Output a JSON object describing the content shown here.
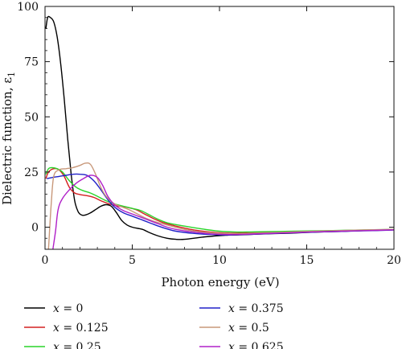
{
  "chart_data": {
    "type": "line",
    "title": "",
    "xlabel": "Photon energy (eV)",
    "ylabel": "Dielectric function, ε",
    "ylabel_sub": "1",
    "xlim": [
      0,
      20
    ],
    "ylim": [
      -10,
      100
    ],
    "xticks": [
      "0",
      "5",
      "10",
      "15",
      "20"
    ],
    "yticks": [
      "0",
      "25",
      "50",
      "75",
      "100"
    ],
    "grid": false,
    "legend_position": "bottom",
    "legend_prefix": "x",
    "series": [
      {
        "name": "= 0",
        "color": "#000000",
        "points": [
          [
            0.05,
            90
          ],
          [
            0.15,
            95
          ],
          [
            0.3,
            95
          ],
          [
            0.5,
            93
          ],
          [
            0.7,
            86
          ],
          [
            0.9,
            74
          ],
          [
            1.1,
            58
          ],
          [
            1.3,
            40
          ],
          [
            1.5,
            24
          ],
          [
            1.7,
            12
          ],
          [
            1.9,
            7
          ],
          [
            2.1,
            5.5
          ],
          [
            2.3,
            5.5
          ],
          [
            2.6,
            6.5
          ],
          [
            2.9,
            8
          ],
          [
            3.2,
            9.5
          ],
          [
            3.5,
            10.2
          ],
          [
            3.8,
            9.5
          ],
          [
            4.1,
            6.5
          ],
          [
            4.4,
            3
          ],
          [
            4.7,
            1
          ],
          [
            5.0,
            0
          ],
          [
            5.3,
            -0.5
          ],
          [
            5.6,
            -1
          ],
          [
            6.0,
            -2.5
          ],
          [
            6.5,
            -4
          ],
          [
            7.0,
            -5
          ],
          [
            7.5,
            -5.5
          ],
          [
            8.0,
            -5.5
          ],
          [
            9.0,
            -4.5
          ],
          [
            10.0,
            -3.8
          ],
          [
            10.5,
            -3.6
          ],
          [
            11.0,
            -3.5
          ],
          [
            12.0,
            -3.2
          ],
          [
            13.0,
            -2.9
          ],
          [
            14.0,
            -2.7
          ],
          [
            15.0,
            -2.4
          ],
          [
            16.0,
            -2.1
          ],
          [
            17.0,
            -1.9
          ],
          [
            18.0,
            -1.6
          ],
          [
            19.0,
            -1.4
          ],
          [
            20.0,
            -1.2
          ]
        ]
      },
      {
        "name": "= 0.125",
        "color": "#d42020",
        "points": [
          [
            0.05,
            22
          ],
          [
            0.2,
            25
          ],
          [
            0.5,
            26.5
          ],
          [
            0.8,
            26
          ],
          [
            1.1,
            23
          ],
          [
            1.4,
            18
          ],
          [
            1.7,
            15.5
          ],
          [
            2.0,
            14.8
          ],
          [
            2.4,
            14.3
          ],
          [
            2.8,
            13.5
          ],
          [
            3.2,
            12
          ],
          [
            3.7,
            10.5
          ],
          [
            4.2,
            9.5
          ],
          [
            4.7,
            9
          ],
          [
            5.2,
            8
          ],
          [
            5.7,
            6
          ],
          [
            6.2,
            4
          ],
          [
            6.8,
            2
          ],
          [
            7.5,
            0.5
          ],
          [
            8.5,
            -1.2
          ],
          [
            9.5,
            -2.2
          ],
          [
            10.5,
            -2.7
          ],
          [
            11.5,
            -2.6
          ],
          [
            12.5,
            -2.4
          ],
          [
            14.0,
            -2.1
          ],
          [
            15.5,
            -1.8
          ],
          [
            17.0,
            -1.5
          ],
          [
            18.5,
            -1.3
          ],
          [
            20.0,
            -1.0
          ]
        ]
      },
      {
        "name": "= 0.25",
        "color": "#2ad42a",
        "points": [
          [
            0.05,
            24
          ],
          [
            0.2,
            26.5
          ],
          [
            0.4,
            27
          ],
          [
            0.7,
            26.5
          ],
          [
            1.0,
            25
          ],
          [
            1.4,
            21
          ],
          [
            1.8,
            18
          ],
          [
            2.2,
            16.5
          ],
          [
            2.6,
            15.5
          ],
          [
            3.0,
            14
          ],
          [
            3.5,
            12
          ],
          [
            4.0,
            10.5
          ],
          [
            4.5,
            9.5
          ],
          [
            5.0,
            8.5
          ],
          [
            5.5,
            7.5
          ],
          [
            6.0,
            5.5
          ],
          [
            6.5,
            3.5
          ],
          [
            7.0,
            2
          ],
          [
            7.5,
            1.2
          ],
          [
            8.0,
            0.5
          ],
          [
            9.0,
            -0.8
          ],
          [
            10.0,
            -1.8
          ],
          [
            11.0,
            -2.2
          ],
          [
            12.0,
            -2.1
          ],
          [
            13.5,
            -1.9
          ],
          [
            15.0,
            -1.7
          ],
          [
            16.5,
            -1.5
          ],
          [
            18.0,
            -1.3
          ],
          [
            20.0,
            -1.0
          ]
        ]
      },
      {
        "name": "= 0.375",
        "color": "#2020c8",
        "points": [
          [
            0.1,
            22
          ],
          [
            0.4,
            22.5
          ],
          [
            0.8,
            23
          ],
          [
            1.2,
            23.5
          ],
          [
            1.6,
            24
          ],
          [
            2.0,
            24
          ],
          [
            2.4,
            23.5
          ],
          [
            2.8,
            21
          ],
          [
            3.2,
            17
          ],
          [
            3.6,
            12.5
          ],
          [
            4.0,
            9
          ],
          [
            4.5,
            6.5
          ],
          [
            5.0,
            5
          ],
          [
            5.5,
            3.5
          ],
          [
            6.0,
            2
          ],
          [
            6.5,
            0.5
          ],
          [
            7.0,
            -0.8
          ],
          [
            7.5,
            -1.8
          ],
          [
            8.5,
            -2.8
          ],
          [
            9.5,
            -3.3
          ],
          [
            10.5,
            -3.5
          ],
          [
            11.5,
            -3.3
          ],
          [
            12.5,
            -3.0
          ],
          [
            14.0,
            -2.6
          ],
          [
            15.5,
            -2.2
          ],
          [
            17.0,
            -1.9
          ],
          [
            18.5,
            -1.6
          ],
          [
            20.0,
            -1.3
          ]
        ]
      },
      {
        "name": "= 0.5",
        "color": "#c8987a",
        "points": [
          [
            0.2,
            -10
          ],
          [
            0.35,
            10
          ],
          [
            0.5,
            23
          ],
          [
            0.8,
            26
          ],
          [
            1.2,
            26.5
          ],
          [
            1.6,
            27
          ],
          [
            2.0,
            28
          ],
          [
            2.3,
            29
          ],
          [
            2.6,
            28.5
          ],
          [
            2.9,
            24
          ],
          [
            3.2,
            18
          ],
          [
            3.5,
            14
          ],
          [
            3.9,
            11
          ],
          [
            4.3,
            9.5
          ],
          [
            4.8,
            8
          ],
          [
            5.3,
            6
          ],
          [
            5.8,
            4
          ],
          [
            6.3,
            2.5
          ],
          [
            7.0,
            1
          ],
          [
            8.0,
            -1
          ],
          [
            9.0,
            -2.2
          ],
          [
            10.0,
            -2.8
          ],
          [
            11.0,
            -3.0
          ],
          [
            12.0,
            -2.7
          ],
          [
            13.5,
            -2.3
          ],
          [
            15.0,
            -1.9
          ],
          [
            16.5,
            -1.6
          ],
          [
            18.0,
            -1.3
          ],
          [
            20.0,
            -1.0
          ]
        ]
      },
      {
        "name": "= 0.625",
        "color": "#b020c8",
        "points": [
          [
            0.45,
            -10
          ],
          [
            0.6,
            -2
          ],
          [
            0.75,
            8
          ],
          [
            1.0,
            13
          ],
          [
            1.4,
            17
          ],
          [
            1.8,
            20
          ],
          [
            2.2,
            22
          ],
          [
            2.6,
            23.5
          ],
          [
            3.0,
            22.5
          ],
          [
            3.3,
            19
          ],
          [
            3.6,
            14
          ],
          [
            4.0,
            10
          ],
          [
            4.5,
            7.5
          ],
          [
            5.0,
            6
          ],
          [
            5.5,
            4.5
          ],
          [
            6.0,
            3
          ],
          [
            6.5,
            1.5
          ],
          [
            7.0,
            0
          ],
          [
            7.5,
            -1
          ],
          [
            8.5,
            -2.2
          ],
          [
            9.5,
            -3.0
          ],
          [
            10.5,
            -3.3
          ],
          [
            11.5,
            -3.2
          ],
          [
            12.5,
            -2.9
          ],
          [
            14.0,
            -2.5
          ],
          [
            15.5,
            -2.1
          ],
          [
            17.0,
            -1.8
          ],
          [
            18.5,
            -1.5
          ],
          [
            20.0,
            -1.2
          ]
        ]
      }
    ]
  }
}
